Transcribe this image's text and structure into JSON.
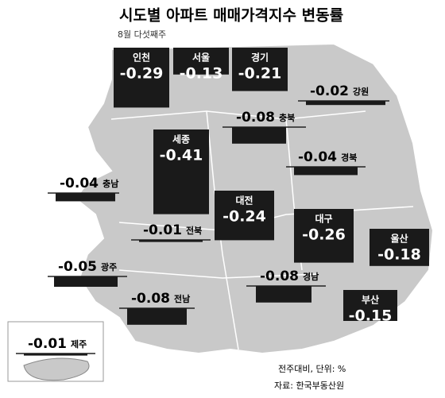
{
  "title": "시도별 아파트 매매가격지수 변동률",
  "subtitle": "8월 다섯째주",
  "regions": [
    {
      "name": "인천",
      "value": -0.29
    },
    {
      "name": "서울",
      "value": -0.13
    },
    {
      "name": "경기",
      "value": -0.21
    },
    {
      "name": "강원",
      "value": -0.02
    },
    {
      "name": "충북",
      "value": -0.08
    },
    {
      "name": "세종",
      "value": -0.41
    },
    {
      "name": "경북",
      "value": -0.04
    },
    {
      "name": "충남",
      "value": -0.04
    },
    {
      "name": "대전",
      "value": -0.24
    },
    {
      "name": "대구",
      "value": -0.26
    },
    {
      "name": "전북",
      "value": -0.01
    },
    {
      "name": "울산",
      "value": -0.18
    },
    {
      "name": "광주",
      "value": -0.05
    },
    {
      "name": "경남",
      "value": -0.08
    },
    {
      "name": "전남",
      "value": -0.08
    },
    {
      "name": "부산",
      "value": -0.15
    },
    {
      "name": "제주",
      "value": -0.01
    }
  ],
  "notes": [
    "전주대비, 단위: %",
    "자료: 한국부동산원"
  ]
}
